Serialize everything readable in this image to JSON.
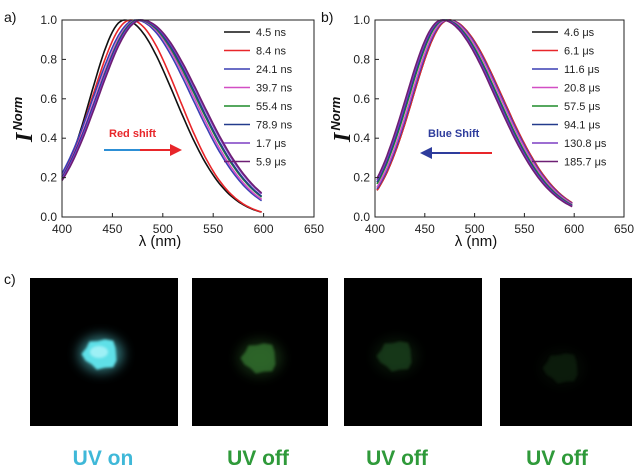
{
  "chart_data": [
    {
      "type": "line",
      "panel_label": "a)",
      "xlabel": "λ (nm)",
      "ylabel_main": "I",
      "ylabel_sup": "Norm",
      "xlim": [
        400,
        650
      ],
      "ylim": [
        0,
        1.0
      ],
      "xticks": [
        400,
        450,
        500,
        550,
        600,
        650
      ],
      "yticks": [
        0.0,
        0.2,
        0.4,
        0.6,
        0.8,
        1.0
      ],
      "legend_position": "top-right",
      "annotation": {
        "text": "Red shift",
        "color": "#e8262a",
        "arrow_direction": "right",
        "arrow_colors": [
          "#2d8fd5",
          "#e8262a"
        ]
      },
      "series": [
        {
          "name": "4.5 ns",
          "color": "#111111",
          "peak": 462,
          "sigma_left": 34,
          "sigma_right": 50,
          "x_start": 400,
          "x_end": 598
        },
        {
          "name": "8.4 ns",
          "color": "#e8262a",
          "peak": 468,
          "sigma_left": 38,
          "sigma_right": 48,
          "x_start": 400,
          "x_end": 598
        },
        {
          "name": "24.1 ns",
          "color": "#3a3fb4",
          "peak": 473,
          "sigma_left": 42,
          "sigma_right": 56,
          "x_start": 400,
          "x_end": 598
        },
        {
          "name": "39.7 ns",
          "color": "#d24fc4",
          "peak": 475,
          "sigma_left": 42,
          "sigma_right": 56,
          "x_start": 400,
          "x_end": 598
        },
        {
          "name": "55.4 ns",
          "color": "#1f8b2a",
          "peak": 476,
          "sigma_left": 42,
          "sigma_right": 57,
          "x_start": 400,
          "x_end": 598
        },
        {
          "name": "78.9 ns",
          "color": "#233b8c",
          "peak": 477,
          "sigma_left": 43,
          "sigma_right": 57,
          "x_start": 400,
          "x_end": 598
        },
        {
          "name": "1.7 μs",
          "color": "#7d3fc4",
          "peak": 478,
          "sigma_left": 43,
          "sigma_right": 58,
          "x_start": 400,
          "x_end": 598
        },
        {
          "name": "5.9 μs",
          "color": "#6e1f74",
          "peak": 479,
          "sigma_left": 43,
          "sigma_right": 58,
          "x_start": 400,
          "x_end": 598
        }
      ]
    },
    {
      "type": "line",
      "panel_label": "b)",
      "xlabel": "λ (nm)",
      "ylabel_main": "I",
      "ylabel_sup": "Norm",
      "xlim": [
        400,
        650
      ],
      "ylim": [
        0,
        1.0
      ],
      "xticks": [
        400,
        450,
        500,
        550,
        600,
        650
      ],
      "yticks": [
        0.0,
        0.2,
        0.4,
        0.6,
        0.8,
        1.0
      ],
      "legend_position": "top-right",
      "annotation": {
        "text": "Blue Shift",
        "color": "#2e3c9c",
        "arrow_direction": "left",
        "arrow_colors": [
          "#2e3c9c",
          "#e8262a"
        ]
      },
      "series": [
        {
          "name": "4.6 μs",
          "color": "#111111",
          "peak": 474,
          "sigma_left": 36,
          "sigma_right": 54,
          "x_start": 402,
          "x_end": 598
        },
        {
          "name": "6.1 μs",
          "color": "#e8262a",
          "peak": 474,
          "sigma_left": 36,
          "sigma_right": 54,
          "x_start": 402,
          "x_end": 598
        },
        {
          "name": "11.6 μs",
          "color": "#3a3fb4",
          "peak": 473,
          "sigma_left": 36,
          "sigma_right": 54,
          "x_start": 402,
          "x_end": 598
        },
        {
          "name": "20.8 μs",
          "color": "#d24fc4",
          "peak": 472,
          "sigma_left": 36,
          "sigma_right": 54,
          "x_start": 402,
          "x_end": 598
        },
        {
          "name": "57.5 μs",
          "color": "#1f8b2a",
          "peak": 470,
          "sigma_left": 36,
          "sigma_right": 54,
          "x_start": 402,
          "x_end": 598
        },
        {
          "name": "94.1 μs",
          "color": "#233b8c",
          "peak": 469,
          "sigma_left": 36,
          "sigma_right": 54,
          "x_start": 402,
          "x_end": 598
        },
        {
          "name": "130.8 μs",
          "color": "#7d3fc4",
          "peak": 468,
          "sigma_left": 36,
          "sigma_right": 54,
          "x_start": 402,
          "x_end": 598
        },
        {
          "name": "185.7 μs",
          "color": "#6e1f74",
          "peak": 467,
          "sigma_left": 36,
          "sigma_right": 54,
          "x_start": 402,
          "x_end": 598
        }
      ]
    }
  ],
  "photos": {
    "panel_label": "c)",
    "items": [
      {
        "caption": "UV on",
        "caption_color": "#3fb8d8",
        "glow_color": "#5fe0e8",
        "intensity": 1.0
      },
      {
        "caption": "UV off",
        "caption_color": "#2f9a3a",
        "glow_color": "#3f8f3a",
        "intensity": 0.55
      },
      {
        "caption": "UV off",
        "caption_color": "#2f9a3a",
        "glow_color": "#2f6f30",
        "intensity": 0.35
      },
      {
        "caption": "UV off",
        "caption_color": "#2f9a3a",
        "glow_color": "#234f24",
        "intensity": 0.22
      }
    ]
  }
}
